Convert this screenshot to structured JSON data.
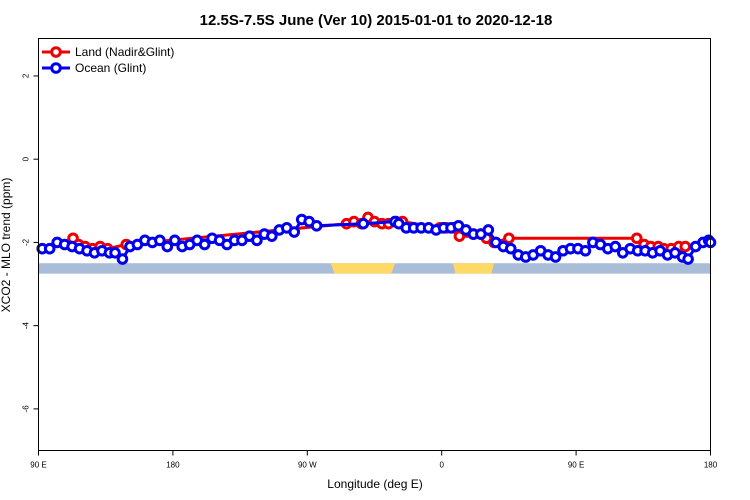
{
  "chart_data": {
    "type": "line",
    "title": "12.5S-7.5S June (Ver 10)   2015-01-01 to 2020-12-18",
    "xlabel": "Longitude (deg E)",
    "ylabel": "XCO2 - MLO trend (ppm)",
    "x_range": [
      90,
      450
    ],
    "ylim": [
      -7.0,
      2.9
    ],
    "x_ticks": [
      {
        "value": 90,
        "label": "90 E"
      },
      {
        "value": 162,
        "label": "180"
      },
      {
        "value": 234,
        "label": "90 W"
      },
      {
        "value": 306,
        "label": "0"
      },
      {
        "value": 378,
        "label": "90 E"
      },
      {
        "value": 450,
        "label": "180"
      }
    ],
    "y_ticks": [
      {
        "value": 2,
        "label": "2"
      },
      {
        "value": 0,
        "label": "0"
      },
      {
        "value": -2,
        "label": "-2"
      },
      {
        "value": -4,
        "label": "-4"
      },
      {
        "value": -6,
        "label": "-6"
      }
    ],
    "legend": {
      "position": "top-left"
    },
    "colors": {
      "land": "#ee0000",
      "ocean": "#0000ee",
      "ocean_band": "#a9bcd8",
      "land_band": "#ffd966"
    },
    "surface_band": {
      "y_top": -2.5,
      "y_bottom": -2.75,
      "land_segments": [
        [
          246.5,
          281
        ],
        [
          312,
          334
        ]
      ]
    },
    "series": [
      {
        "name": "Land (Nadir&Glint)",
        "color": "#ee0000",
        "points": [
          [
            108.5,
            -1.9
          ],
          [
            111.5,
            -2.05
          ],
          [
            115,
            -2.1
          ],
          [
            119,
            -2.15
          ],
          [
            123,
            -2.1
          ],
          [
            127,
            -2.15
          ],
          [
            137,
            -2.05
          ],
          [
            255,
            -1.55
          ],
          [
            259,
            -1.5
          ],
          [
            263,
            -1.55
          ],
          [
            266.5,
            -1.4
          ],
          [
            270,
            -1.5
          ],
          [
            274,
            -1.55
          ],
          [
            277.5,
            -1.55
          ],
          [
            281.5,
            -1.5
          ],
          [
            285,
            -1.5
          ],
          [
            305,
            -1.65
          ],
          [
            308.5,
            -1.65
          ],
          [
            312.5,
            -1.65
          ],
          [
            315.5,
            -1.85
          ],
          [
            319.5,
            -1.75
          ],
          [
            323,
            -1.8
          ],
          [
            327,
            -1.8
          ],
          [
            330,
            -1.9
          ],
          [
            334,
            -2.0
          ],
          [
            342,
            -1.9
          ],
          [
            410.5,
            -1.9
          ],
          [
            414.5,
            -2.05
          ],
          [
            418,
            -2.1
          ],
          [
            422,
            -2.1
          ],
          [
            425,
            -2.15
          ],
          [
            429,
            -2.15
          ],
          [
            433,
            -2.1
          ],
          [
            436.5,
            -2.1
          ]
        ]
      },
      {
        "name": "Ocean (Glint)",
        "color": "#0000ee",
        "points": [
          [
            92,
            -2.15
          ],
          [
            96,
            -2.15
          ],
          [
            100,
            -2.0
          ],
          [
            104,
            -2.05
          ],
          [
            108,
            -2.1
          ],
          [
            112,
            -2.15
          ],
          [
            116,
            -2.2
          ],
          [
            120,
            -2.25
          ],
          [
            124,
            -2.2
          ],
          [
            128,
            -2.25
          ],
          [
            131,
            -2.25
          ],
          [
            135,
            -2.4
          ],
          [
            139,
            -2.1
          ],
          [
            143,
            -2.05
          ],
          [
            147,
            -1.95
          ],
          [
            151,
            -2.0
          ],
          [
            155,
            -1.95
          ],
          [
            159,
            -2.1
          ],
          [
            163,
            -1.95
          ],
          [
            167,
            -2.1
          ],
          [
            171,
            -2.05
          ],
          [
            175,
            -1.95
          ],
          [
            179,
            -2.05
          ],
          [
            183,
            -1.9
          ],
          [
            187,
            -1.95
          ],
          [
            191,
            -2.05
          ],
          [
            195,
            -1.95
          ],
          [
            199,
            -1.95
          ],
          [
            203,
            -1.85
          ],
          [
            207,
            -1.95
          ],
          [
            211,
            -1.8
          ],
          [
            215,
            -1.85
          ],
          [
            219,
            -1.7
          ],
          [
            223,
            -1.65
          ],
          [
            227,
            -1.75
          ],
          [
            231,
            -1.45
          ],
          [
            235,
            -1.5
          ],
          [
            239,
            -1.6
          ],
          [
            264,
            -1.55
          ],
          [
            281,
            -1.5
          ],
          [
            283,
            -1.55
          ],
          [
            287,
            -1.65
          ],
          [
            291,
            -1.65
          ],
          [
            295,
            -1.65
          ],
          [
            299,
            -1.65
          ],
          [
            303,
            -1.7
          ],
          [
            307,
            -1.65
          ],
          [
            311,
            -1.65
          ],
          [
            315,
            -1.6
          ],
          [
            319,
            -1.7
          ],
          [
            323,
            -1.8
          ],
          [
            327,
            -1.8
          ],
          [
            331,
            -1.7
          ],
          [
            335,
            -2.0
          ],
          [
            339,
            -2.1
          ],
          [
            343,
            -2.15
          ],
          [
            347,
            -2.3
          ],
          [
            351,
            -2.35
          ],
          [
            355,
            -2.3
          ],
          [
            359,
            -2.2
          ],
          [
            363,
            -2.3
          ],
          [
            367,
            -2.35
          ],
          [
            371,
            -2.2
          ],
          [
            375,
            -2.15
          ],
          [
            379,
            -2.15
          ],
          [
            383,
            -2.2
          ],
          [
            387,
            -2.0
          ],
          [
            391,
            -2.05
          ],
          [
            395,
            -2.15
          ],
          [
            399,
            -2.1
          ],
          [
            403,
            -2.25
          ],
          [
            407,
            -2.15
          ],
          [
            411,
            -2.2
          ],
          [
            415,
            -2.2
          ],
          [
            419,
            -2.25
          ],
          [
            423,
            -2.2
          ],
          [
            427,
            -2.3
          ],
          [
            431,
            -2.25
          ],
          [
            435,
            -2.35
          ],
          [
            438,
            -2.4
          ],
          [
            442,
            -2.1
          ],
          [
            446,
            -2.0
          ],
          [
            449,
            -1.95
          ],
          [
            450,
            -2.0
          ]
        ]
      }
    ]
  }
}
